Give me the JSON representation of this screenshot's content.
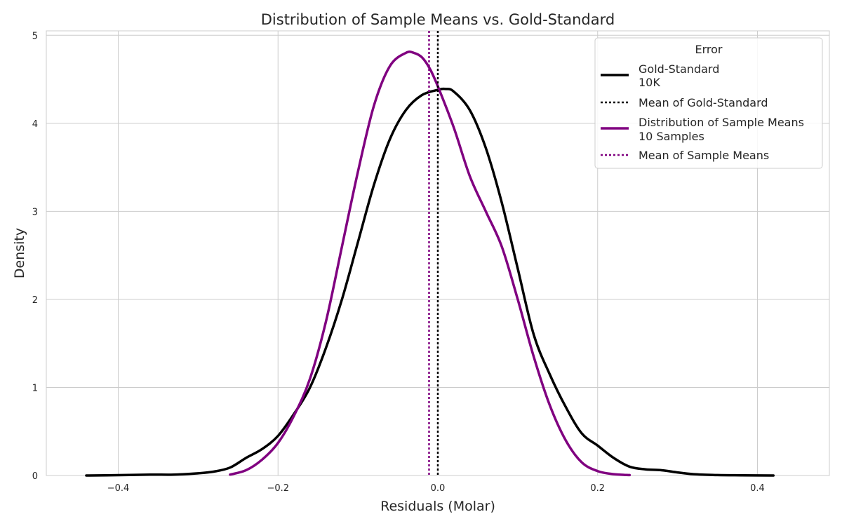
{
  "chart_data": {
    "type": "line",
    "title": "Distribution of Sample Means vs. Gold-Standard",
    "xlabel": "Residuals (Molar)",
    "ylabel": "Density",
    "xlim": [
      -0.49,
      0.49
    ],
    "ylim": [
      0,
      5.05
    ],
    "grid": true,
    "xticks": [
      -0.4,
      -0.2,
      0.0,
      0.2,
      0.4
    ],
    "xtick_labels": [
      "−0.4",
      "−0.2",
      "0.0",
      "0.2",
      "0.4"
    ],
    "yticks": [
      0,
      1,
      2,
      3,
      4,
      5
    ],
    "ytick_labels": [
      "0",
      "1",
      "2",
      "3",
      "4",
      "5"
    ],
    "legend": {
      "title": "Error",
      "placement": "top-right",
      "entries": [
        {
          "label_line1": "Gold-Standard",
          "label_line2": "10K",
          "style": "solid",
          "color": "#000000"
        },
        {
          "label_line1": "Mean of Gold-Standard",
          "label_line2": "",
          "style": "dotted",
          "color": "#000000"
        },
        {
          "label_line1": "Distribution of Sample Means",
          "label_line2": "10 Samples",
          "style": "solid",
          "color": "#800080"
        },
        {
          "label_line1": "Mean of Sample Means",
          "label_line2": "",
          "style": "dotted",
          "color": "#800080"
        }
      ]
    },
    "series": [
      {
        "name": "Gold-Standard 10K",
        "color": "#000000",
        "style": "solid",
        "x": [
          -0.44,
          -0.4,
          -0.36,
          -0.33,
          -0.3,
          -0.28,
          -0.26,
          -0.24,
          -0.22,
          -0.2,
          -0.18,
          -0.16,
          -0.14,
          -0.12,
          -0.1,
          -0.08,
          -0.06,
          -0.04,
          -0.02,
          0.0,
          0.01,
          0.02,
          0.04,
          0.06,
          0.08,
          0.1,
          0.12,
          0.14,
          0.16,
          0.18,
          0.2,
          0.22,
          0.24,
          0.26,
          0.28,
          0.3,
          0.32,
          0.35,
          0.38,
          0.42
        ],
        "y": [
          0.0,
          0.004,
          0.01,
          0.01,
          0.025,
          0.045,
          0.09,
          0.2,
          0.3,
          0.45,
          0.7,
          1.0,
          1.45,
          2.0,
          2.65,
          3.3,
          3.82,
          4.15,
          4.32,
          4.38,
          4.39,
          4.36,
          4.15,
          3.72,
          3.1,
          2.35,
          1.6,
          1.15,
          0.78,
          0.48,
          0.34,
          0.2,
          0.1,
          0.07,
          0.06,
          0.035,
          0.015,
          0.005,
          0.002,
          0.0
        ]
      },
      {
        "name": "Distribution of Sample Means 10 Samples",
        "color": "#800080",
        "style": "solid",
        "x": [
          -0.26,
          -0.24,
          -0.22,
          -0.2,
          -0.18,
          -0.16,
          -0.14,
          -0.12,
          -0.1,
          -0.08,
          -0.06,
          -0.04,
          -0.03,
          -0.02,
          -0.01,
          0.0,
          0.02,
          0.04,
          0.06,
          0.08,
          0.1,
          0.12,
          0.14,
          0.16,
          0.18,
          0.2,
          0.22,
          0.24
        ],
        "y": [
          0.01,
          0.06,
          0.18,
          0.37,
          0.68,
          1.1,
          1.75,
          2.6,
          3.45,
          4.2,
          4.65,
          4.8,
          4.8,
          4.75,
          4.62,
          4.42,
          3.95,
          3.4,
          3.0,
          2.6,
          2.0,
          1.35,
          0.8,
          0.4,
          0.15,
          0.05,
          0.015,
          0.005
        ]
      }
    ],
    "vlines": [
      {
        "name": "Mean of Gold-Standard",
        "x": 0.0,
        "color": "#000000",
        "style": "dotted"
      },
      {
        "name": "Mean of Sample Means",
        "x": -0.011,
        "color": "#800080",
        "style": "dotted"
      }
    ]
  }
}
